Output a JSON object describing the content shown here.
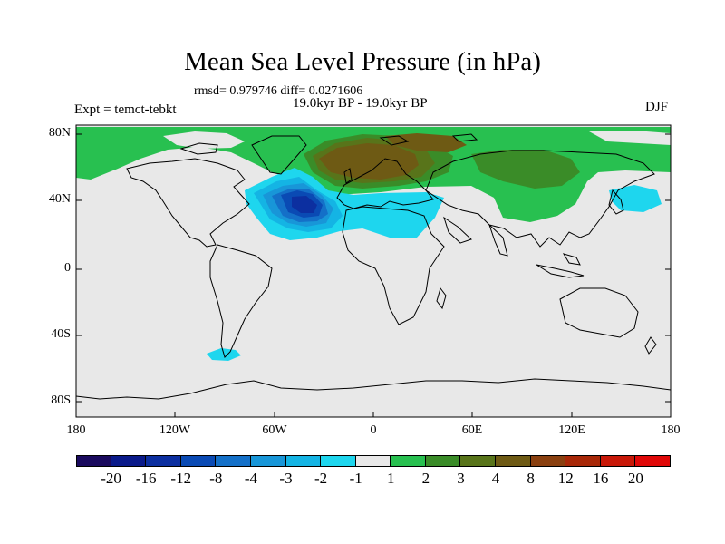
{
  "title": "Mean Sea Level Pressure (in hPa)",
  "stats": "rmsd= 0.979746 diff= 0.0271606",
  "period": "19.0kyr BP - 19.0kyr BP",
  "expt": "Expt = temct-tebkt",
  "season": "DJF",
  "lat_labels": [
    "80N",
    "40N",
    "0",
    "40S",
    "80S"
  ],
  "lon_labels": [
    "180",
    "120W",
    "60W",
    "0",
    "60E",
    "120E",
    "180"
  ],
  "colorbar": {
    "labels": [
      "-20",
      "-16",
      "-12",
      "-8",
      "-4",
      "-3",
      "-2",
      "-1",
      "1",
      "2",
      "3",
      "4",
      "8",
      "12",
      "16",
      "20"
    ],
    "colors": [
      "#1a0a5e",
      "#0a1a8a",
      "#0c2fa0",
      "#0a4ab4",
      "#1470c8",
      "#1896d8",
      "#14b4e4",
      "#1ed6ee",
      "#e8e8e8",
      "#28c050",
      "#3a8c28",
      "#58741a",
      "#6e5a14",
      "#8a4010",
      "#a82808",
      "#c81808",
      "#e00808"
    ]
  },
  "colors": {
    "land_fill": "#e8e8e8",
    "coast": "#000000"
  }
}
